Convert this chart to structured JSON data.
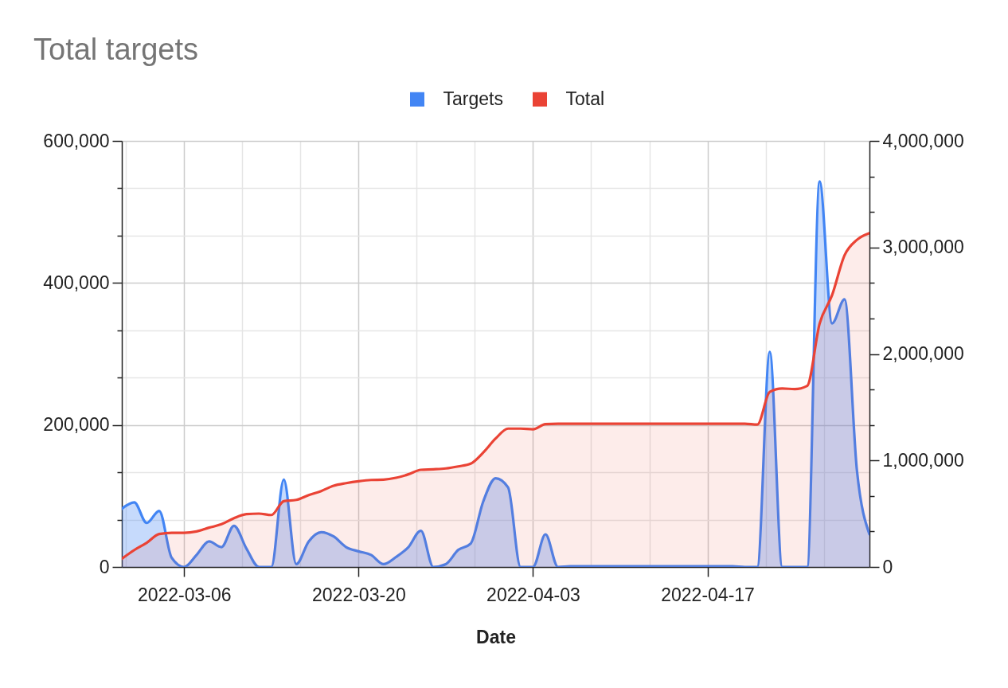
{
  "chart_data": {
    "type": "area",
    "title": "Total targets",
    "xlabel": "Date",
    "legend": "top",
    "grid": true,
    "x": [
      "2022-03-01",
      "2022-03-02",
      "2022-03-03",
      "2022-03-04",
      "2022-03-05",
      "2022-03-06",
      "2022-03-07",
      "2022-03-08",
      "2022-03-09",
      "2022-03-10",
      "2022-03-11",
      "2022-03-12",
      "2022-03-13",
      "2022-03-14",
      "2022-03-15",
      "2022-03-16",
      "2022-03-17",
      "2022-03-18",
      "2022-03-19",
      "2022-03-20",
      "2022-03-21",
      "2022-03-22",
      "2022-03-23",
      "2022-03-24",
      "2022-03-25",
      "2022-03-26",
      "2022-03-27",
      "2022-03-28",
      "2022-03-29",
      "2022-03-30",
      "2022-03-31",
      "2022-04-01",
      "2022-04-02",
      "2022-04-03",
      "2022-04-04",
      "2022-04-05",
      "2022-04-06",
      "2022-04-07",
      "2022-04-08",
      "2022-04-09",
      "2022-04-10",
      "2022-04-11",
      "2022-04-12",
      "2022-04-13",
      "2022-04-14",
      "2022-04-15",
      "2022-04-16",
      "2022-04-17",
      "2022-04-18",
      "2022-04-19",
      "2022-04-20",
      "2022-04-21",
      "2022-04-22",
      "2022-04-23",
      "2022-04-24",
      "2022-04-25",
      "2022-04-26",
      "2022-04-27",
      "2022-04-28",
      "2022-04-29",
      "2022-04-30"
    ],
    "series": [
      {
        "name": "Targets",
        "color": "#4285f4",
        "values": [
          82000,
          91000,
          62000,
          79000,
          13000,
          0,
          17000,
          36000,
          28000,
          58000,
          26000,
          0,
          0,
          123000,
          4000,
          36000,
          49000,
          43000,
          28000,
          22000,
          17000,
          4000,
          14000,
          28000,
          51000,
          0,
          4000,
          24000,
          33000,
          92000,
          125000,
          112000,
          0,
          0,
          46000,
          0,
          1000,
          1000,
          1000,
          1000,
          1000,
          1000,
          1000,
          1000,
          1000,
          1000,
          1000,
          1000,
          1000,
          1000,
          0,
          0,
          303000,
          0,
          0,
          0,
          543000,
          343000,
          377000,
          135000,
          46000
        ]
      },
      {
        "name": "Total",
        "color": "#ea4335",
        "axis": "y2",
        "values": [
          77000,
          159000,
          227000,
          309000,
          321000,
          321000,
          334000,
          369000,
          401000,
          458000,
          496000,
          501000,
          488000,
          618000,
          630000,
          675000,
          713000,
          763000,
          787000,
          805000,
          817000,
          820000,
          837000,
          870000,
          912000,
          917000,
          925000,
          944000,
          970000,
          1074000,
          1206000,
          1299000,
          1299000,
          1293000,
          1341000,
          1345000,
          1345000,
          1345000,
          1345000,
          1345000,
          1345000,
          1345000,
          1345000,
          1345000,
          1345000,
          1345000,
          1345000,
          1345000,
          1345000,
          1345000,
          1345000,
          1337000,
          1644000,
          1676000,
          1670000,
          1700000,
          2285000,
          2552000,
          2926000,
          3072000,
          3134000
        ]
      }
    ],
    "xlim": [
      "2022-03-01",
      "2022-04-30"
    ],
    "xticks": [
      {
        "value": "2022-03-01T08:00",
        "label": null
      },
      "2022-03-06",
      {
        "value": "2022-03-10T16:00",
        "label": null
      },
      {
        "value": "2022-03-15T08:00",
        "label": null
      },
      "2022-03-20",
      {
        "value": "2022-03-24T16:00",
        "label": null
      },
      {
        "value": "2022-03-29T08:00",
        "label": null
      },
      "2022-04-03",
      {
        "value": "2022-04-07T16:00",
        "label": null
      },
      {
        "value": "2022-04-12T08:00",
        "label": null
      },
      "2022-04-17",
      {
        "value": "2022-04-21T16:00",
        "label": null
      },
      {
        "value": "2022-04-26T08:00",
        "label": null
      }
    ],
    "ylim": [
      0,
      600000
    ],
    "yticks": [
      0,
      {
        "value": 66667,
        "label": null
      },
      {
        "value": 133333,
        "label": null
      },
      {
        "value": 200000,
        "label": "200,000"
      },
      {
        "value": 266667,
        "label": null
      },
      {
        "value": 333333,
        "label": null
      },
      {
        "value": 400000,
        "label": "400,000"
      },
      {
        "value": 466667,
        "label": null
      },
      {
        "value": 533333,
        "label": null
      },
      {
        "value": 600000,
        "label": "600,000"
      }
    ],
    "y2lim": [
      0,
      4000000
    ],
    "y2ticks": [
      0,
      {
        "value": 333333,
        "label": null
      },
      {
        "value": 666667,
        "label": null
      },
      {
        "value": 1000000,
        "label": "1,000,000"
      },
      {
        "value": 1333333,
        "label": null
      },
      {
        "value": 1666667,
        "label": null
      },
      {
        "value": 2000000,
        "label": "2,000,000"
      },
      {
        "value": 2333333,
        "label": null
      },
      {
        "value": 2666667,
        "label": null
      },
      {
        "value": 3000000,
        "label": "3,000,000"
      },
      {
        "value": 3333333,
        "label": null
      },
      {
        "value": 3666667,
        "label": null
      },
      {
        "value": 4000000,
        "label": "4,000,000"
      }
    ]
  }
}
